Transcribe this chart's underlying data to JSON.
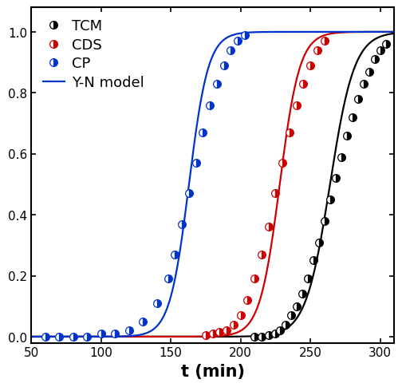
{
  "xlabel": "t (min)",
  "xlim": [
    50,
    310
  ],
  "ylim": [
    -0.02,
    1.08
  ],
  "yticks": [
    0.0,
    0.2,
    0.4,
    0.6,
    0.8,
    1.0
  ],
  "xticks": [
    50,
    100,
    150,
    200,
    250,
    300
  ],
  "TCM_data_x": [
    210,
    215,
    220,
    225,
    228,
    232,
    236,
    240,
    244,
    248,
    252,
    256,
    260,
    264,
    268,
    272,
    276,
    280,
    284,
    288,
    292,
    296,
    300,
    304
  ],
  "TCM_data_y": [
    0.0,
    0.0,
    0.005,
    0.01,
    0.02,
    0.04,
    0.07,
    0.1,
    0.14,
    0.19,
    0.25,
    0.31,
    0.38,
    0.45,
    0.52,
    0.59,
    0.66,
    0.72,
    0.78,
    0.83,
    0.87,
    0.91,
    0.94,
    0.96
  ],
  "TCM_kYN": 0.115,
  "TCM_t0": 264,
  "CDS_data_x": [
    175,
    180,
    185,
    190,
    195,
    200,
    205,
    210,
    215,
    220,
    225,
    230,
    235,
    240,
    245,
    250,
    255,
    260
  ],
  "CDS_data_y": [
    0.005,
    0.01,
    0.015,
    0.02,
    0.04,
    0.07,
    0.12,
    0.19,
    0.27,
    0.36,
    0.47,
    0.57,
    0.67,
    0.76,
    0.83,
    0.89,
    0.94,
    0.97
  ],
  "CDS_kYN": 0.14,
  "CDS_t0": 228,
  "CP_data_x": [
    60,
    70,
    80,
    90,
    100,
    110,
    120,
    130,
    140,
    148,
    153,
    158,
    163,
    168,
    173,
    178,
    183,
    188,
    193,
    198,
    203
  ],
  "CP_data_y": [
    0.0,
    0.0,
    0.0,
    0.0,
    0.01,
    0.01,
    0.02,
    0.05,
    0.11,
    0.19,
    0.27,
    0.37,
    0.47,
    0.57,
    0.67,
    0.76,
    0.83,
    0.89,
    0.94,
    0.97,
    0.99
  ],
  "CP_kYN": 0.145,
  "CP_t0": 163,
  "color_TCM": "#000000",
  "color_CDS": "#cc0000",
  "color_CP": "#0033cc",
  "marker_size": 7,
  "line_width": 1.6,
  "font_size_label": 15,
  "font_size_tick": 11,
  "font_size_legend": 13
}
